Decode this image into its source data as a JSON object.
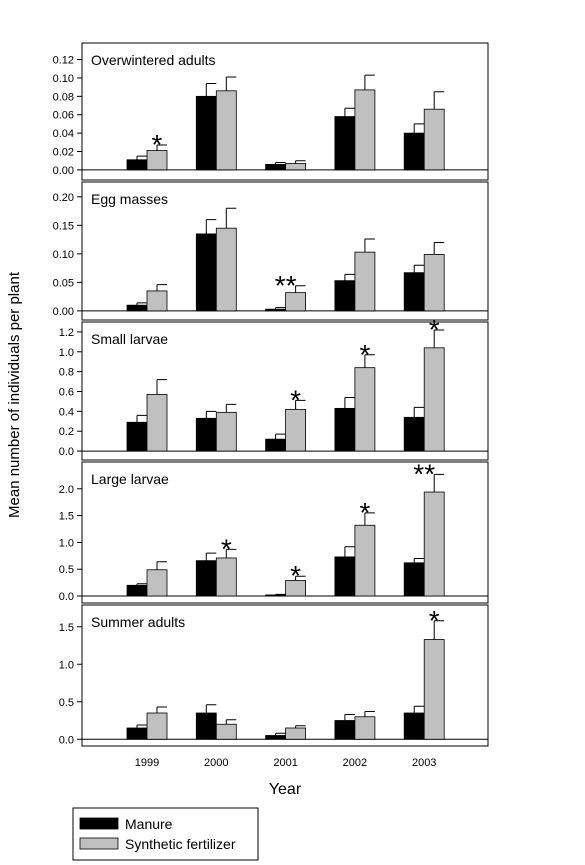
{
  "figure": {
    "y_label": "Mean number of individuals per plant",
    "x_label": "Year",
    "categories": [
      "1999",
      "2000",
      "2001",
      "2002",
      "2003"
    ],
    "legend": [
      {
        "name": "Manure",
        "color": "#000000"
      },
      {
        "name": "Synthetic fertilizer",
        "color": "#c0c0c0"
      }
    ]
  },
  "chart_data": [
    {
      "type": "bar",
      "title": "Overwintered adults",
      "series": [
        {
          "values": [
            0.011,
            0.08,
            0.006,
            0.058,
            0.04
          ],
          "errors": [
            0.004,
            0.014,
            0.002,
            0.009,
            0.01
          ]
        },
        {
          "values": [
            0.021,
            0.086,
            0.007,
            0.087,
            0.066
          ],
          "errors": [
            0.006,
            0.015,
            0.003,
            0.016,
            0.019
          ]
        }
      ],
      "significance": [
        "*",
        null,
        null,
        null,
        null
      ],
      "ylim": [
        -0.011,
        0.138
      ],
      "yticks": [
        {
          "value": 0,
          "label": "0.00"
        },
        0.02,
        0.04,
        0.06,
        0.08,
        {
          "value": 0.1,
          "label": "0.10"
        },
        0.12
      ]
    },
    {
      "type": "bar",
      "title": "Egg masses",
      "series": [
        {
          "values": [
            0.01,
            0.135,
            0.003,
            0.053,
            0.067
          ],
          "errors": [
            0.004,
            0.025,
            0.003,
            0.011,
            0.013
          ]
        },
        {
          "values": [
            0.035,
            0.145,
            0.032,
            0.103,
            0.099
          ],
          "errors": [
            0.011,
            0.035,
            0.012,
            0.023,
            0.021
          ]
        }
      ],
      "significance": [
        null,
        null,
        "**",
        null,
        null
      ],
      "ylim": [
        -0.016,
        0.226
      ],
      "yticks": [
        {
          "value": 0,
          "label": "0.00"
        },
        0.05,
        {
          "value": 0.1,
          "label": "0.10"
        },
        0.15,
        {
          "value": 0.2,
          "label": "0.20"
        }
      ]
    },
    {
      "type": "bar",
      "title": "Small larvae",
      "series": [
        {
          "values": [
            0.29,
            0.33,
            0.12,
            0.43,
            0.34
          ],
          "errors": [
            0.07,
            0.07,
            0.05,
            0.11,
            0.1
          ]
        },
        {
          "values": [
            0.57,
            0.39,
            0.42,
            0.84,
            1.04
          ],
          "errors": [
            0.15,
            0.08,
            0.09,
            0.13,
            0.18
          ]
        }
      ],
      "significance": [
        null,
        null,
        "*",
        "*",
        "*"
      ],
      "ylim": [
        -0.09,
        1.3
      ],
      "yticks": [
        {
          "value": 0,
          "label": "0.0"
        },
        0.2,
        0.4,
        0.6,
        0.8,
        {
          "value": 1,
          "label": "1.0"
        },
        1.2
      ]
    },
    {
      "type": "bar",
      "title": "Large larvae",
      "series": [
        {
          "values": [
            0.2,
            0.66,
            0.02,
            0.73,
            0.62
          ],
          "errors": [
            0.03,
            0.14,
            0.01,
            0.19,
            0.08
          ]
        },
        {
          "values": [
            0.49,
            0.71,
            0.29,
            1.32,
            1.94
          ],
          "errors": [
            0.15,
            0.16,
            0.08,
            0.23,
            0.33
          ]
        }
      ],
      "significance": [
        null,
        "*",
        "*",
        "*",
        "**"
      ],
      "ylim": [
        -0.13,
        2.5
      ],
      "yticks": [
        {
          "value": 0,
          "label": "0.0"
        },
        0.5,
        {
          "value": 1,
          "label": "1.0"
        },
        1.5,
        {
          "value": 2,
          "label": "2.0"
        }
      ]
    },
    {
      "type": "bar",
      "title": "Summer adults",
      "series": [
        {
          "values": [
            0.15,
            0.35,
            0.05,
            0.25,
            0.35
          ],
          "errors": [
            0.04,
            0.11,
            0.03,
            0.08,
            0.09
          ]
        },
        {
          "values": [
            0.35,
            0.2,
            0.15,
            0.3,
            1.33
          ],
          "errors": [
            0.08,
            0.06,
            0.03,
            0.07,
            0.25
          ]
        }
      ],
      "significance": [
        null,
        null,
        null,
        null,
        "*"
      ],
      "ylim": [
        -0.09,
        1.79
      ],
      "yticks": [
        {
          "value": 0,
          "label": "0.0"
        },
        0.5,
        {
          "value": 1,
          "label": "1.0"
        },
        1.5
      ]
    }
  ]
}
